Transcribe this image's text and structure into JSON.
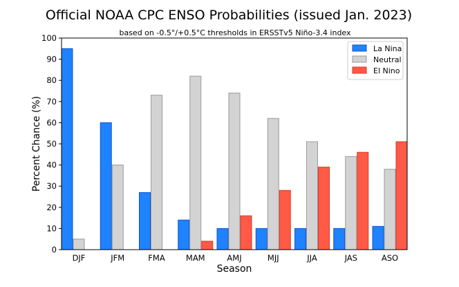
{
  "chart_data": {
    "type": "bar",
    "title": "Official NOAA CPC ENSO Probabilities (issued Jan. 2023)",
    "subtitle": "based on -0.5°/+0.5°C thresholds in ERSSTv5 Niño-3.4 index",
    "xlabel": "Season",
    "ylabel": "Percent Chance (%)",
    "ylim": [
      0,
      100
    ],
    "yticks": [
      0,
      10,
      20,
      30,
      40,
      50,
      60,
      70,
      80,
      90,
      100
    ],
    "categories": [
      "DJF",
      "JFM",
      "FMA",
      "MAM",
      "AMJ",
      "MJJ",
      "JJA",
      "JAS",
      "ASO"
    ],
    "series": [
      {
        "name": "La Nina",
        "color": "#1f82ff",
        "edge": "#1155cc",
        "values": [
          95,
          60,
          27,
          14,
          10,
          10,
          10,
          10,
          11
        ]
      },
      {
        "name": "Neutral",
        "color": "#d3d3d3",
        "edge": "#9a9a9a",
        "values": [
          5,
          40,
          73,
          82,
          74,
          62,
          51,
          44,
          38
        ]
      },
      {
        "name": "El Nino",
        "color": "#ff5a45",
        "edge": "#d63a2a",
        "values": [
          0,
          0,
          0,
          4,
          16,
          28,
          39,
          46,
          51
        ]
      }
    ],
    "grid": false,
    "legend_position": "top-right"
  }
}
